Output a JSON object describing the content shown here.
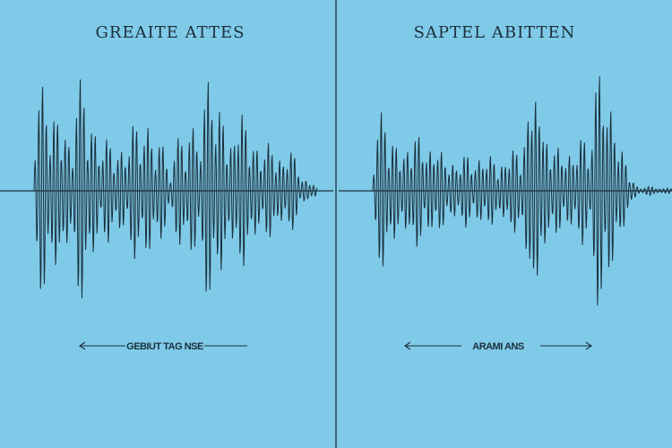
{
  "panels": [
    {
      "title": "GREAITE ATTES",
      "caption": "GEBIUT TAG NSE"
    },
    {
      "title": "SAPTEL ABITTEN",
      "caption": "ARAMI ANS"
    }
  ]
}
